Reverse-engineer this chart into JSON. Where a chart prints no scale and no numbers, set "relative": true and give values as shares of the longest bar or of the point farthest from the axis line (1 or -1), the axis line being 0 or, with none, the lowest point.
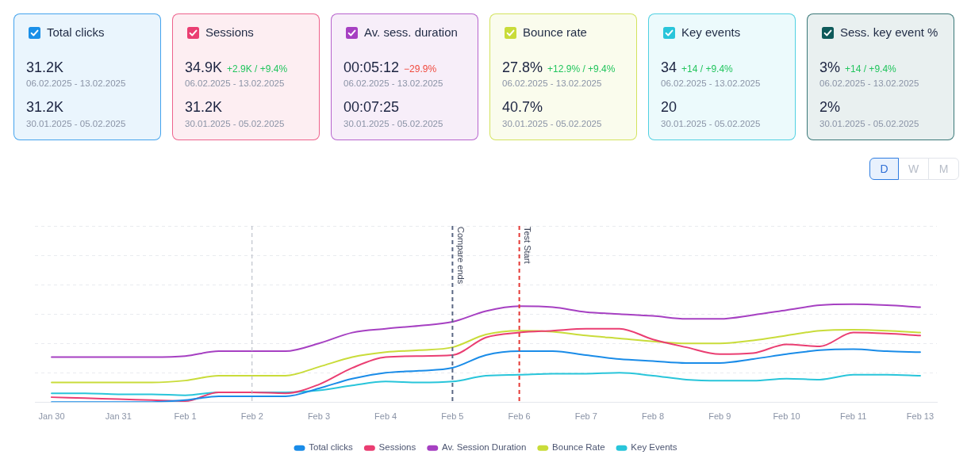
{
  "chart_data": [
    {
      "type": "other",
      "title": "Total clicks",
      "color": "#1a8fe8",
      "annotations": [
        "31.2K",
        "06.02.2025 - 13.02.2025",
        "31.2K",
        "30.01.2025 - 05.02.2025"
      ],
      "colors": [
        "#1b2340",
        "#8a93a6",
        "#1b2340",
        "#8a93a6"
      ]
    },
    {
      "type": "other",
      "title": "Sessions",
      "color": "#ea3e72",
      "annotations": [
        "34.9K",
        "+2.9K / +9.4%",
        "06.02.2025 - 13.02.2025",
        "31.2K",
        "30.01.2025 - 05.02.2025"
      ],
      "colors": [
        "#1b2340",
        "#22c55e",
        "#8a93a6",
        "#1b2340",
        "#8a93a6"
      ]
    },
    {
      "type": "other",
      "title": "Av. sess. duration",
      "color": "#a640c2",
      "annotations": [
        "00:05:12",
        "−29.9%",
        "06.02.2025 - 13.02.2025",
        "00:07:25",
        "30.01.2025 - 05.02.2025"
      ],
      "colors": [
        "#1b2340",
        "#f04a3e",
        "#8a93a6",
        "#1b2340",
        "#8a93a6"
      ]
    },
    {
      "type": "other",
      "title": "Bounce rate",
      "color": "#c9dc3a",
      "annotations": [
        "27.8%",
        "+12.9% / +9.4%",
        "06.02.2025 - 13.02.2025",
        "40.7%",
        "30.01.2025 - 05.02.2025"
      ],
      "colors": [
        "#1b2340",
        "#22c55e",
        "#8a93a6",
        "#1b2340",
        "#8a93a6"
      ]
    },
    {
      "type": "other",
      "title": "Key events",
      "color": "#29c5da",
      "annotations": [
        "34",
        "+14 / +9.4%",
        "06.02.2025 - 13.02.2025",
        "20",
        "30.01.2025 - 05.02.2025"
      ],
      "colors": [
        "#1b2340",
        "#22c55e",
        "#8a93a6",
        "#1b2340",
        "#8a93a6"
      ]
    },
    {
      "type": "other",
      "title": "Sess. key event %",
      "color": "#0e5a5a",
      "annotations": [
        "3%",
        "+14 / +9.4%",
        "06.02.2025 - 13.02.2025",
        "2%",
        "30.01.2025 - 05.02.2025"
      ],
      "colors": [
        "#1b2340",
        "#22c55e",
        "#8a93a6",
        "#1b2340",
        "#8a93a6"
      ]
    },
    {
      "type": "line",
      "relative": true,
      "grid": "y",
      "legend": "bottom",
      "categories": [
        "Jan 30",
        null,
        "Jan 31",
        null,
        "Feb 1",
        null,
        "Feb 2",
        null,
        "Feb 3",
        null,
        "Feb 4",
        null,
        "Feb 5",
        null,
        "Feb 6",
        null,
        "Feb 7",
        null,
        "Feb 8",
        null,
        "Feb 9",
        null,
        "Feb 10",
        null,
        "Feb 11",
        null,
        "Feb 13"
      ],
      "series": [
        {
          "name": "Total clicks",
          "color": "#1a8ce8",
          "values": [
            0,
            0,
            0,
            0,
            0.02,
            0.06,
            0.06,
            0.06,
            0.14,
            0.24,
            0.3,
            0.32,
            0.35,
            0.48,
            0.52,
            0.52,
            0.48,
            0.44,
            0.42,
            0.4,
            0.4,
            0.44,
            0.49,
            0.53,
            0.54,
            0.52,
            0.51
          ]
        },
        {
          "name": "Sessions",
          "color": "#ea3e72",
          "values": [
            0.05,
            0.04,
            0.03,
            0.02,
            0.01,
            0.1,
            0.1,
            0.09,
            0.18,
            0.35,
            0.46,
            0.47,
            0.48,
            0.66,
            0.71,
            0.73,
            0.75,
            0.75,
            0.64,
            0.56,
            0.49,
            0.5,
            0.59,
            0.57,
            0.71,
            0.7,
            0.68
          ]
        },
        {
          "name": "Av. Session Duration",
          "color": "#a640c2",
          "values": [
            0.46,
            0.46,
            0.46,
            0.46,
            0.47,
            0.52,
            0.52,
            0.52,
            0.6,
            0.71,
            0.75,
            0.78,
            0.82,
            0.93,
            0.98,
            0.97,
            0.92,
            0.9,
            0.88,
            0.85,
            0.85,
            0.89,
            0.94,
            0.99,
            1,
            0.99,
            0.97
          ]
        },
        {
          "name": "Bounce Rate",
          "color": "#c9dc3a",
          "values": [
            0.2,
            0.2,
            0.2,
            0.2,
            0.22,
            0.27,
            0.27,
            0.27,
            0.36,
            0.46,
            0.51,
            0.53,
            0.56,
            0.69,
            0.73,
            0.72,
            0.68,
            0.65,
            0.62,
            0.6,
            0.6,
            0.63,
            0.68,
            0.73,
            0.74,
            0.73,
            0.71
          ]
        },
        {
          "name": "Key Events",
          "color": "#29c5da",
          "values": [
            0.09,
            0.09,
            0.08,
            0.08,
            0.07,
            0.1,
            0.1,
            0.1,
            0.12,
            0.17,
            0.21,
            0.2,
            0.21,
            0.27,
            0.28,
            0.29,
            0.29,
            0.3,
            0.27,
            0.23,
            0.22,
            0.22,
            0.24,
            0.23,
            0.28,
            0.28,
            0.27
          ]
        }
      ],
      "ref_lines": [
        {
          "axis": "x",
          "value": "Feb 2",
          "color": "#b3b8c2",
          "line_style": "dashed"
        },
        {
          "axis": "x",
          "value": "Feb 5",
          "label": "Compare ends",
          "color": "#5a6784",
          "line_style": "dashed"
        },
        {
          "axis": "x",
          "value": "Feb 6",
          "label": "Test Start",
          "color": "#e53935",
          "line_style": "dashed"
        }
      ],
      "annotations": [
        "D",
        "W",
        "M"
      ]
    }
  ]
}
